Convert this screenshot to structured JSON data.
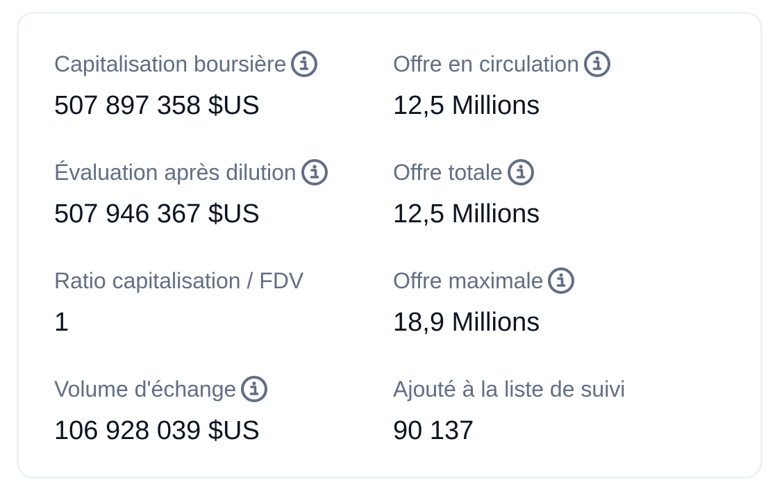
{
  "stats": {
    "market_cap": {
      "label": "Capitalisation boursière",
      "value": "507 897 358 $US",
      "icon": "info-icon"
    },
    "fdv": {
      "label": "Évaluation après dilution",
      "value": "507 946 367 $US",
      "icon": "info-icon"
    },
    "ratio": {
      "label": "Ratio capitalisation / FDV",
      "value": "1"
    },
    "volume": {
      "label": "Volume d'échange",
      "value": "106 928 039 $US",
      "icon": "info-icon"
    },
    "circulating_supply": {
      "label": "Offre en circulation",
      "value": "12,5 Millions",
      "icon": "info-icon"
    },
    "total_supply": {
      "label": "Offre totale",
      "value": "12,5 Millions",
      "icon": "info-icon"
    },
    "max_supply": {
      "label": "Offre maximale",
      "value": "18,9 Millions",
      "icon": "info-icon"
    },
    "watchlist": {
      "label": "Ajouté à la liste de suivi",
      "value": "90 137"
    }
  },
  "colors": {
    "label": "#616e85",
    "value": "#0d1421",
    "border": "#eff2f5"
  }
}
